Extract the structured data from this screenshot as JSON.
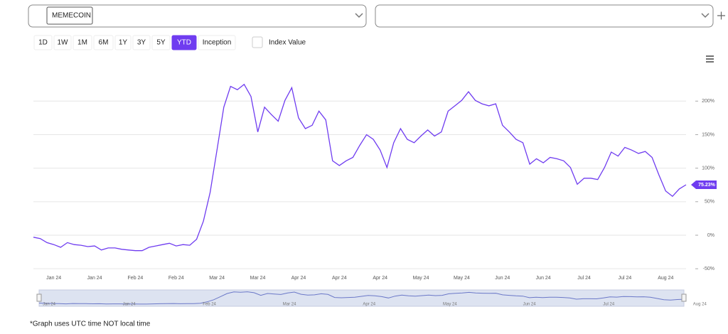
{
  "asset_selector": {
    "value": "MEMECOIN"
  },
  "range_buttons": [
    "1D",
    "1W",
    "1M",
    "6M",
    "1Y",
    "3Y",
    "5Y",
    "YTD",
    "Inception"
  ],
  "active_range": "YTD",
  "index_value_label": "Index Value",
  "footnote": "*Graph uses UTC time NOT local time",
  "chart_data": {
    "type": "line",
    "categories": [
      null,
      null,
      null,
      "Jan 24",
      null,
      null,
      null,
      null,
      null,
      "Jan 24",
      null,
      null,
      null,
      null,
      null,
      "Feb 24",
      null,
      null,
      null,
      null,
      null,
      "Feb 24",
      null,
      null,
      null,
      null,
      null,
      "Mar 24",
      null,
      null,
      null,
      null,
      null,
      "Mar 24",
      null,
      null,
      null,
      null,
      null,
      "Apr 24",
      null,
      null,
      null,
      null,
      null,
      "Apr 24",
      null,
      null,
      null,
      null,
      null,
      "Apr 24",
      null,
      null,
      null,
      null,
      null,
      "May 24",
      null,
      null,
      null,
      null,
      null,
      "May 24",
      null,
      null,
      null,
      null,
      null,
      "Jun 24",
      null,
      null,
      null,
      null,
      null,
      "Jun 24",
      null,
      null,
      null,
      null,
      null,
      "Jul 24",
      null,
      null,
      null,
      null,
      null,
      "Jul 24",
      null,
      null,
      null,
      null,
      null,
      "Aug 24",
      null,
      null,
      null
    ],
    "series": [
      {
        "color": "#6f3cf0",
        "values": [
          -3,
          -5,
          -11,
          -14,
          -18,
          -11,
          -14,
          -15,
          -17,
          -16,
          -22,
          -19,
          -19,
          -21,
          -22,
          -23,
          -23,
          -18,
          -16,
          -14,
          -12,
          -16,
          -14,
          -15,
          -6,
          21,
          64,
          127,
          191,
          222,
          217,
          225,
          207,
          154,
          191,
          180,
          170,
          201,
          220,
          175,
          159,
          164,
          185,
          172,
          111,
          104,
          111,
          116,
          134,
          150,
          143,
          127,
          101,
          138,
          159,
          143,
          138,
          148,
          157,
          148,
          154,
          185,
          193,
          201,
          214,
          201,
          196,
          193,
          196,
          164,
          154,
          143,
          138,
          106,
          114,
          108,
          116,
          114,
          111,
          101,
          76,
          85,
          85,
          83,
          101,
          124,
          118,
          131,
          127,
          122,
          125,
          116,
          90,
          66,
          58,
          69,
          75.23
        ],
        "value_labels": [
          null,
          null,
          null,
          null,
          null,
          null,
          null,
          null,
          null,
          null,
          null,
          null,
          null,
          null,
          null,
          null,
          null,
          null,
          null,
          null,
          null,
          null,
          null,
          null,
          null,
          null,
          null,
          null,
          null,
          null,
          null,
          null,
          null,
          null,
          null,
          null,
          null,
          null,
          null,
          null,
          null,
          null,
          null,
          null,
          null,
          null,
          null,
          null,
          null,
          null,
          null,
          null,
          null,
          null,
          null,
          null,
          null,
          null,
          null,
          null,
          null,
          null,
          null,
          null,
          null,
          null,
          null,
          null,
          null,
          null,
          null,
          null,
          null,
          null,
          null,
          null,
          null,
          null,
          null,
          null,
          null,
          null,
          null,
          null,
          null,
          null,
          null,
          null,
          null,
          null,
          null,
          null,
          null,
          null,
          null,
          null,
          "75.23%"
        ]
      }
    ],
    "ylim": [
      -53,
      248
    ],
    "yticks": [
      {
        "value": -50,
        "label": "-50%"
      },
      {
        "value": 0,
        "label": "0%"
      },
      {
        "value": 50,
        "label": "50%"
      },
      {
        "value": 100,
        "label": "100%"
      },
      {
        "value": 150,
        "label": "150%"
      },
      {
        "value": 200,
        "label": "200%"
      }
    ],
    "grid": true,
    "navigator_labels": [
      "Jan 24",
      "Jan 24",
      "Feb 24",
      "Mar 24",
      "Apr 24",
      "May 24",
      "Jun 24",
      "Jul 24",
      "Aug 24"
    ]
  }
}
